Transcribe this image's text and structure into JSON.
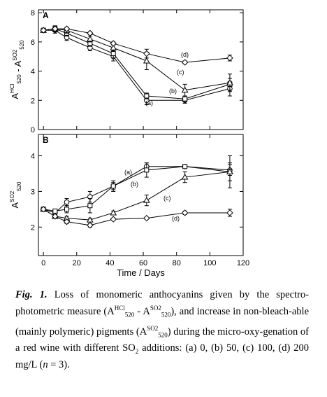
{
  "chart_data": [
    {
      "type": "line",
      "panel_label": "A",
      "ylabel": [
        {
          "text": "A",
          "sup": "HCl",
          "sub": "520"
        },
        {
          "text": " - A",
          "sup": "SO2",
          "sub": "520"
        }
      ],
      "x": [
        0,
        7,
        14,
        28,
        42,
        62,
        85,
        112
      ],
      "xlim": [
        -3,
        120
      ],
      "xticks": [
        0,
        20,
        40,
        60,
        80,
        100,
        120
      ],
      "show_xtick_labels": false,
      "ylim": [
        0,
        8.2
      ],
      "yticks": [
        0,
        2,
        4,
        6,
        8
      ],
      "series": [
        {
          "name": "(a)",
          "marker": "circle",
          "color": "#000000",
          "values": [
            6.8,
            6.8,
            6.3,
            5.6,
            5.0,
            2.0,
            2.0,
            2.8
          ],
          "errors": [
            null,
            0.2,
            0.2,
            0.2,
            0.3,
            0.3,
            0.2,
            0.5
          ]
        },
        {
          "name": "(b)",
          "marker": "square",
          "color": "#000000",
          "values": [
            6.8,
            6.9,
            6.6,
            5.9,
            5.2,
            2.3,
            2.1,
            3.1
          ],
          "errors": [
            null,
            0.2,
            0.2,
            0.2,
            0.3,
            0.2,
            0.2,
            0.4
          ]
        },
        {
          "name": "(c)",
          "marker": "triangle",
          "color": "#000000",
          "values": [
            6.8,
            6.9,
            6.8,
            6.2,
            5.6,
            4.7,
            2.7,
            3.2
          ],
          "errors": [
            null,
            0.2,
            0.2,
            0.2,
            0.2,
            0.6,
            0.4,
            0.6
          ]
        },
        {
          "name": "(d)",
          "marker": "diamond",
          "color": "#000000",
          "values": [
            6.8,
            6.9,
            6.9,
            6.6,
            5.9,
            5.2,
            4.6,
            4.9
          ],
          "errors": [
            null,
            0.2,
            0.1,
            0.1,
            0.1,
            0.3,
            0.1,
            0.2
          ]
        }
      ]
    },
    {
      "type": "line",
      "panel_label": "B",
      "ylabel": [
        {
          "text": "A",
          "sup": "SO2",
          "sub": "520"
        }
      ],
      "xlabel": "Time / Days",
      "x": [
        0,
        7,
        14,
        28,
        42,
        62,
        85,
        112
      ],
      "xlim": [
        -3,
        120
      ],
      "xticks": [
        0,
        20,
        40,
        60,
        80,
        100,
        120
      ],
      "show_xtick_labels": true,
      "ylim": [
        1.2,
        4.6
      ],
      "yticks": [
        2,
        3,
        4
      ],
      "series": [
        {
          "name": "(a)",
          "marker": "circle",
          "color": "#000000",
          "values": [
            2.5,
            2.4,
            2.7,
            2.85,
            3.15,
            3.7,
            3.7,
            3.6
          ],
          "errors": [
            null,
            0.05,
            0.1,
            0.15,
            0.1,
            0.1,
            0.05,
            0.15
          ]
        },
        {
          "name": "(b)",
          "marker": "square",
          "color": "#000000",
          "values": [
            2.5,
            2.45,
            2.5,
            2.6,
            3.15,
            3.6,
            3.7,
            3.55
          ],
          "errors": [
            null,
            0.05,
            0.1,
            0.2,
            0.15,
            0.2,
            0.05,
            0.45
          ]
        },
        {
          "name": "(c)",
          "marker": "triangle",
          "color": "#000000",
          "values": [
            2.5,
            2.3,
            2.25,
            2.2,
            2.4,
            2.75,
            3.4,
            3.55
          ],
          "errors": [
            null,
            0.05,
            0.05,
            0.05,
            0.05,
            0.15,
            0.15,
            0.25
          ]
        },
        {
          "name": "(d)",
          "marker": "diamond",
          "color": "#000000",
          "values": [
            2.5,
            2.3,
            2.15,
            2.05,
            2.22,
            2.25,
            2.4,
            2.4
          ],
          "errors": [
            null,
            0.05,
            0.05,
            0.05,
            0.03,
            0.03,
            0.05,
            0.1
          ]
        }
      ]
    }
  ],
  "caption": [
    {
      "text": "Fig. 1.",
      "style": "bold-italic"
    },
    {
      "text": " Loss of monomeric anthocyanins given by the spectro-photometric measure (A",
      "style": "plain"
    },
    {
      "text": "HCl",
      "style": "sup"
    },
    {
      "text": "520",
      "style": "sub"
    },
    {
      "text": " - A",
      "style": "plain"
    },
    {
      "text": "SO2",
      "style": "sup"
    },
    {
      "text": "520",
      "style": "sub"
    },
    {
      "text": "), and increase in non-bleach-able (mainly polymeric) pigments (A",
      "style": "plain"
    },
    {
      "text": "SO2",
      "style": "sup"
    },
    {
      "text": "520",
      "style": "sub"
    },
    {
      "text": ") during the micro-oxy-genation of a red wine with different SO",
      "style": "plain"
    },
    {
      "text": "2",
      "style": "sub"
    },
    {
      "text": " additions: (a) 0, (b) 50, (c) 100, (d) 200 mg/L (",
      "style": "plain"
    },
    {
      "text": "n",
      "style": "italic"
    },
    {
      "text": " = 3).",
      "style": "plain"
    }
  ]
}
